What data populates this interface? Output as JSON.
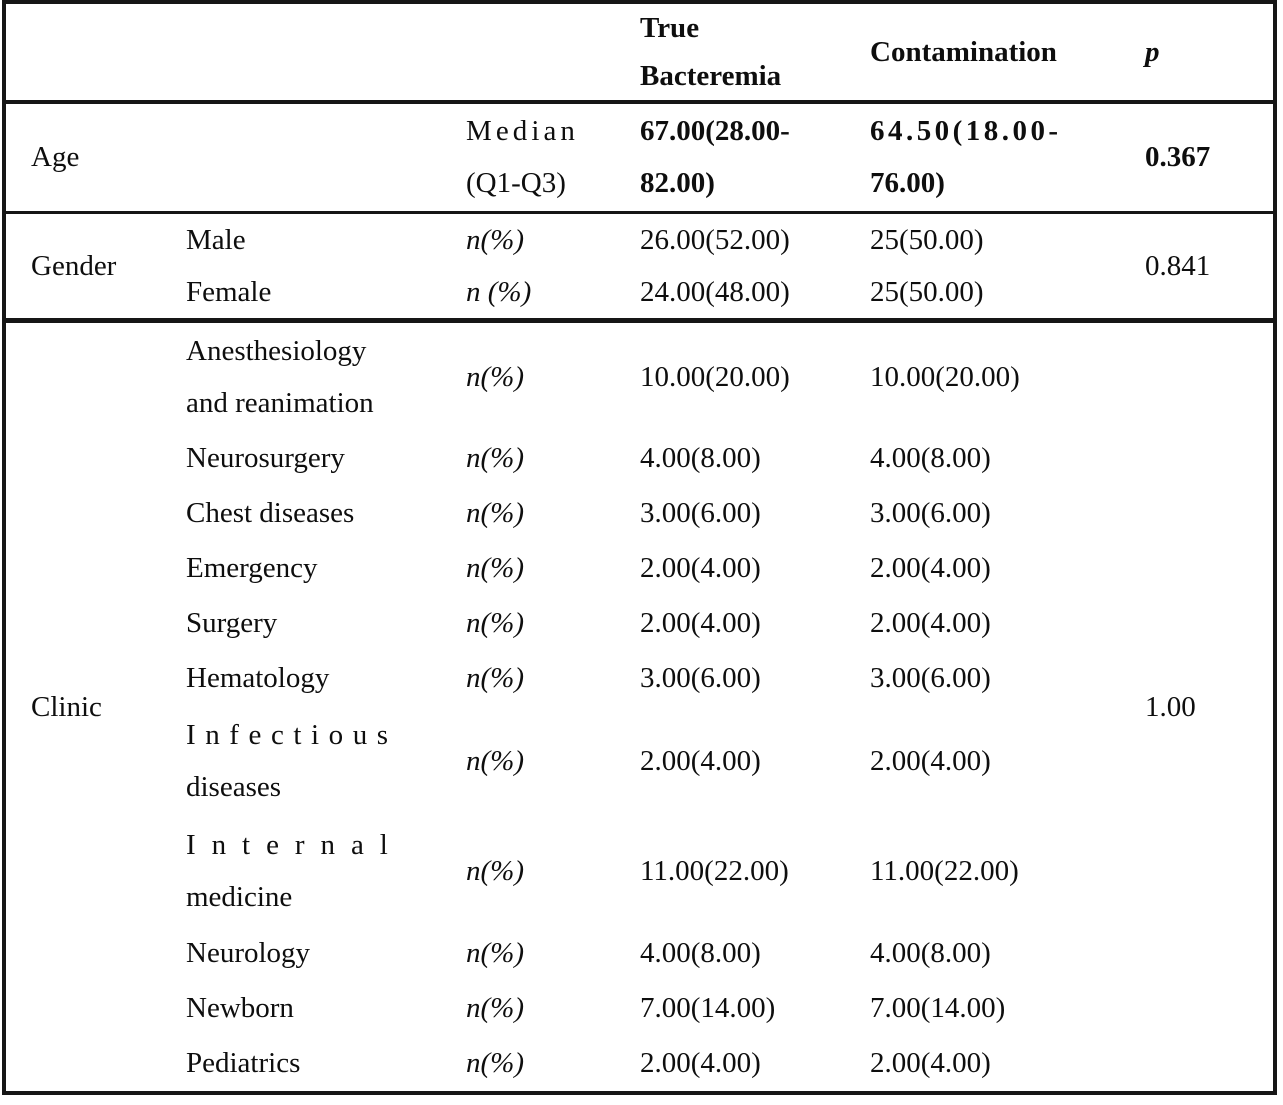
{
  "header": {
    "true_bacteremia_line1": "True",
    "true_bacteremia_line2": "Bacteremia",
    "contamination": "Contamination",
    "p": "p"
  },
  "age": {
    "label": "Age",
    "measure_line1": "Median",
    "measure_line2": "(Q1-Q3)",
    "true_line1": "67.00(28.00-",
    "true_line2": "82.00)",
    "cont_line1": "64.50(18.00-",
    "cont_line2": "76.00)",
    "p": "0.367"
  },
  "gender": {
    "label": "Gender",
    "p": "0.841",
    "rows": [
      {
        "label": "Male",
        "measure": "n(%)",
        "true": "26.00(52.00)",
        "cont": "25(50.00)"
      },
      {
        "label": "Female",
        "measure": "n (%)",
        "true": "24.00(48.00)",
        "cont": "25(50.00)"
      }
    ]
  },
  "clinic": {
    "label": "Clinic",
    "p": "1.00",
    "rows": [
      {
        "label_line1": "Anesthesiology",
        "label_line2": "and reanimation",
        "measure": "n(%)",
        "true": "10.00(20.00)",
        "cont": "10.00(20.00)"
      },
      {
        "label_line1": "Neurosurgery",
        "label_line2": "",
        "measure": "n(%)",
        "true": "4.00(8.00)",
        "cont": "4.00(8.00)"
      },
      {
        "label_line1": "Chest diseases",
        "label_line2": "",
        "measure": "n(%)",
        "true": "3.00(6.00)",
        "cont": "3.00(6.00)"
      },
      {
        "label_line1": "Emergency",
        "label_line2": "",
        "measure": "n(%)",
        "true": "2.00(4.00)",
        "cont": "2.00(4.00)"
      },
      {
        "label_line1": "Surgery",
        "label_line2": "",
        "measure": "n(%)",
        "true": "2.00(4.00)",
        "cont": "2.00(4.00)"
      },
      {
        "label_line1": "Hematology",
        "label_line2": "",
        "measure": "n(%)",
        "true": "3.00(6.00)",
        "cont": "3.00(6.00)"
      },
      {
        "label_line1": "Infectious",
        "label_line2": "diseases",
        "measure": "n(%)",
        "true": "2.00(4.00)",
        "cont": "2.00(4.00)"
      },
      {
        "label_line1": "Internal",
        "label_line2": "medicine",
        "measure": "n(%)",
        "true": "11.00(22.00)",
        "cont": "11.00(22.00)"
      },
      {
        "label_line1": "Neurology",
        "label_line2": "",
        "measure": "n(%)",
        "true": "4.00(8.00)",
        "cont": "4.00(8.00)"
      },
      {
        "label_line1": "Newborn",
        "label_line2": "",
        "measure": "n(%)",
        "true": "7.00(14.00)",
        "cont": "7.00(14.00)"
      },
      {
        "label_line1": "Pediatrics",
        "label_line2": "",
        "measure": "n(%)",
        "true": "2.00(4.00)",
        "cont": "2.00(4.00)"
      }
    ]
  },
  "colors": {
    "text": "#0e0e0e",
    "border": "#161616",
    "background": "#ffffff"
  }
}
